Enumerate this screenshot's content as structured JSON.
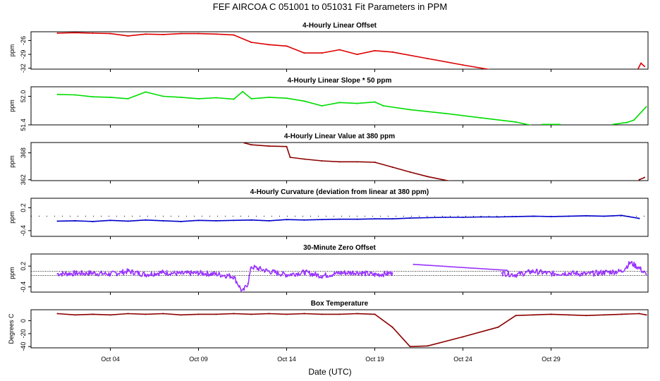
{
  "title": "FEF   AIRCOA C   051001 to 051031   Fit Parameters in PPM",
  "xlabel": "Date (UTC)",
  "chart_data": {
    "type": "line",
    "x_unit": "day of October 2005",
    "xlim": [
      -0.5,
      34.5
    ],
    "x_ticks": [
      4,
      9,
      14,
      19,
      24,
      29
    ],
    "x_tick_labels": [
      "Oct 04",
      "Oct 09",
      "Oct 14",
      "Oct 19",
      "Oct 24",
      "Oct 29"
    ],
    "panels": [
      {
        "id": "offset",
        "title": "4-Hourly Linear Offset",
        "ylabel": "ppm",
        "ylim": [
          -32.2,
          -24.1
        ],
        "yticks": [
          -32,
          -29,
          -26
        ],
        "ytick_labels": [
          "-32",
          "-29",
          "-26"
        ],
        "color": "#dd0000",
        "style": "line",
        "series": [
          {
            "x": [
              1,
              2,
              3,
              4,
              5,
              6,
              7,
              8,
              9,
              10,
              11,
              12,
              13,
              14,
              15,
              16,
              17,
              18,
              19,
              20,
              22,
              24,
              26
            ],
            "y": [
              -24.4,
              -24.3,
              -24.4,
              -24.5,
              -25.0,
              -24.6,
              -24.7,
              -24.5,
              -24.5,
              -24.6,
              -24.8,
              -26.4,
              -26.9,
              -27.2,
              -28.7,
              -28.7,
              -28.0,
              -29.0,
              -28.2,
              -28.5,
              -29.9,
              -31.3,
              -32.6
            ]
          },
          {
            "x": [
              33.9,
              34.1,
              34.3
            ],
            "y": [
              -32.4,
              -30.9,
              -31.6
            ]
          }
        ]
      },
      {
        "id": "slope",
        "title": "4-Hourly Linear Slope * 50 ppm",
        "ylabel": "ppm",
        "ylim": [
          51.4,
          52.2
        ],
        "yticks": [
          51.4,
          52.0
        ],
        "ytick_labels": [
          "51.4",
          "52.0"
        ],
        "color": "#00dd00",
        "style": "line",
        "series": [
          {
            "x": [
              1,
              2,
              3,
              4,
              5,
              6,
              7,
              8,
              9,
              10,
              11,
              11.5,
              12,
              13,
              14,
              15,
              16,
              17,
              18,
              19,
              19.5,
              21,
              23,
              25,
              27,
              28
            ],
            "y": [
              52.04,
              52.03,
              51.99,
              51.98,
              51.95,
              52.09,
              52.0,
              51.98,
              51.95,
              51.97,
              51.94,
              52.1,
              51.95,
              51.98,
              51.96,
              51.9,
              51.8,
              51.87,
              51.85,
              51.88,
              51.8,
              51.72,
              51.64,
              51.55,
              51.46,
              51.38
            ]
          },
          {
            "x": [
              28.5,
              29.5
            ],
            "y": [
              51.41,
              51.41
            ]
          },
          {
            "x": [
              32.5,
              33.3,
              33.7,
              34.4
            ],
            "y": [
              51.41,
              51.45,
              51.5,
              51.78
            ]
          }
        ]
      },
      {
        "id": "value",
        "title": "4-Hourly Linear Value at 380 ppm",
        "ylabel": "ppm",
        "ylim": [
          361.8,
          370.3
        ],
        "yticks": [
          362,
          368
        ],
        "ytick_labels": [
          "362",
          "368"
        ],
        "color": "#8b0000",
        "style": "line",
        "series": [
          {
            "x": [
              11.6,
              12,
              13,
              14,
              14.2,
              15,
              16,
              17,
              18,
              19,
              20,
              21,
              22,
              23.5
            ],
            "y": [
              370.2,
              369.8,
              369.5,
              369.4,
              367.0,
              366.6,
              366.2,
              366.0,
              366.0,
              365.9,
              364.8,
              363.7,
              362.7,
              361.5
            ]
          },
          {
            "x": [
              34.0,
              34.3
            ],
            "y": [
              362.0,
              362.5
            ]
          }
        ]
      },
      {
        "id": "curvature",
        "title": "4-Hourly Curvature (deviation from linear at 380 ppm)",
        "ylabel": "ppm",
        "ylim": [
          -0.55,
          0.45
        ],
        "yticks": [
          -0.4,
          0.2
        ],
        "ytick_labels": [
          "-0.4",
          "0.2"
        ],
        "color": "#0000cc",
        "style": "line",
        "dotted_ref": -0.02,
        "series": [
          {
            "x": [
              1,
              2,
              3,
              4,
              5,
              6,
              7,
              8,
              9,
              10,
              11,
              12,
              13,
              14,
              15,
              16,
              17,
              18,
              19,
              20,
              21,
              22,
              23,
              24,
              25,
              26,
              27,
              28,
              29,
              30,
              31,
              32,
              33,
              34
            ],
            "y": [
              -0.15,
              -0.14,
              -0.16,
              -0.13,
              -0.15,
              -0.12,
              -0.14,
              -0.16,
              -0.13,
              -0.14,
              -0.13,
              -0.12,
              -0.14,
              -0.11,
              -0.12,
              -0.11,
              -0.1,
              -0.1,
              -0.09,
              -0.09,
              -0.07,
              -0.06,
              -0.05,
              -0.05,
              -0.04,
              -0.04,
              -0.03,
              -0.02,
              -0.03,
              -0.02,
              -0.01,
              -0.02,
              0.0,
              -0.08
            ]
          }
        ]
      },
      {
        "id": "zero",
        "title": "30-Minute Zero Offset",
        "ylabel": "ppm",
        "ylim": [
          -0.55,
          0.55
        ],
        "yticks": [
          -0.4,
          0.2
        ],
        "ytick_labels": [
          "-0.4",
          "0.2"
        ],
        "color": "#9933ff",
        "style": "noisy",
        "ref_lines": [
          0.05,
          -0.07
        ],
        "series": [
          {
            "x": [
              1,
              2,
              3,
              4,
              5,
              6,
              7,
              8,
              9,
              10,
              11,
              11.5,
              11.8,
              12,
              13,
              14,
              15,
              16,
              17,
              18,
              19,
              20
            ],
            "y": [
              -0.02,
              -0.01,
              0.0,
              -0.03,
              0.05,
              -0.04,
              0.02,
              -0.02,
              0.0,
              -0.03,
              -0.1,
              -0.55,
              -0.3,
              0.18,
              0.05,
              -0.05,
              0.02,
              -0.08,
              0.0,
              0.02,
              -0.05,
              0.0
            ]
          },
          {
            "x": [
              21.2,
              26.5
            ],
            "y": [
              0.25,
              0.08
            ]
          },
          {
            "x": [
              26.2,
              27,
              28,
              29,
              30,
              31,
              32,
              33,
              33.5,
              34,
              34.4
            ],
            "y": [
              0.0,
              -0.05,
              0.05,
              -0.02,
              0.0,
              -0.03,
              0.02,
              0.05,
              0.3,
              0.15,
              -0.05
            ]
          }
        ]
      },
      {
        "id": "temperature",
        "title": "Box Temperature",
        "ylabel": "Degrees C",
        "ylim": [
          -42,
          17
        ],
        "yticks": [
          -40,
          -20,
          0
        ],
        "ytick_labels": [
          "-40",
          "-20",
          "0"
        ],
        "color": "#8b0000",
        "style": "line",
        "series": [
          {
            "x": [
              1,
              2,
              3,
              4,
              5,
              6,
              7,
              8,
              9,
              10,
              11,
              12,
              13,
              14,
              15,
              16,
              17,
              18,
              19,
              20,
              21,
              22,
              24,
              26,
              27,
              28,
              29,
              30,
              31,
              32,
              33,
              34,
              34.4
            ],
            "y": [
              11,
              9,
              10,
              9,
              11,
              10,
              11,
              9,
              10,
              10,
              11,
              10,
              11,
              10,
              11,
              10,
              10,
              11,
              10,
              -10,
              -40,
              -39,
              -25,
              -10,
              8,
              9,
              10,
              9,
              8,
              9,
              10,
              11,
              9
            ]
          }
        ]
      }
    ]
  }
}
